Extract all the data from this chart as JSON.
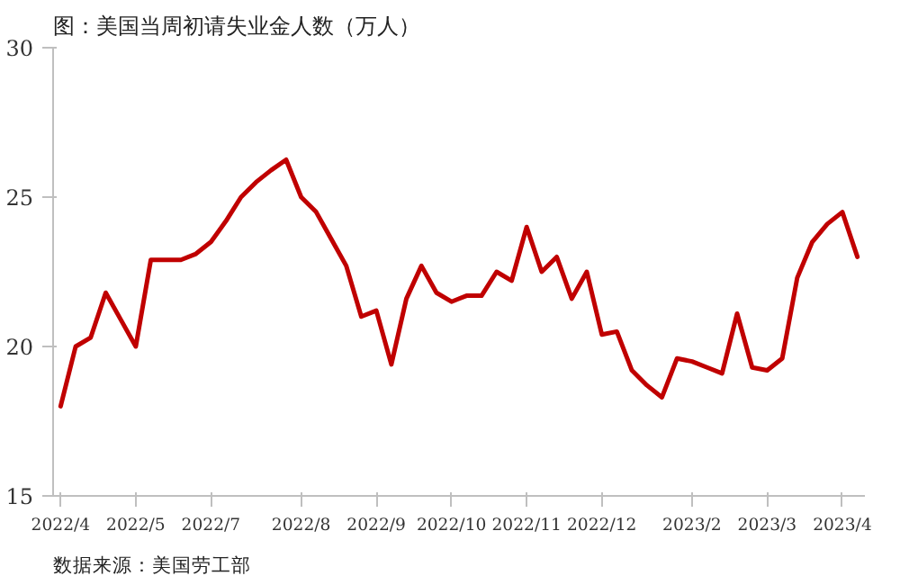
{
  "chart_data": {
    "type": "line",
    "title": "图：美国当周初请失业金人数（万人）",
    "annotations": [
      "数据来源：美国劳工部"
    ],
    "categories": [
      "2022/4",
      null,
      null,
      null,
      null,
      "2022/5",
      null,
      null,
      null,
      null,
      "2022/7",
      null,
      null,
      null,
      null,
      null,
      "2022/8",
      null,
      null,
      null,
      null,
      "2022/9",
      null,
      null,
      null,
      null,
      "2022/10",
      null,
      null,
      null,
      null,
      "2022/11",
      null,
      null,
      null,
      null,
      "2022/12",
      null,
      null,
      null,
      null,
      null,
      "2023/2",
      null,
      null,
      null,
      null,
      "2023/3",
      null,
      null,
      null,
      null,
      "2023/4",
      null
    ],
    "series": [
      {
        "color": "#c00000",
        "values": [
          18.0,
          20.0,
          20.3,
          21.8,
          20.9,
          20.0,
          22.9,
          22.9,
          22.9,
          23.1,
          23.5,
          24.2,
          25.0,
          25.5,
          25.9,
          26.25,
          25.0,
          24.5,
          23.6,
          22.7,
          21.0,
          21.2,
          19.4,
          21.6,
          22.7,
          21.8,
          21.5,
          21.7,
          21.7,
          22.5,
          22.2,
          24.0,
          22.5,
          23.0,
          21.6,
          22.5,
          20.4,
          20.5,
          19.2,
          18.7,
          18.3,
          19.6,
          19.5,
          19.3,
          19.1,
          21.1,
          19.3,
          19.2,
          19.6,
          22.3,
          23.5,
          24.1,
          24.5,
          23.0
        ]
      }
    ],
    "ylim": [
      15,
      30
    ],
    "yticks": [
      15,
      20,
      25,
      30
    ],
    "grid": false,
    "marker": "none",
    "line_style": "solid"
  }
}
